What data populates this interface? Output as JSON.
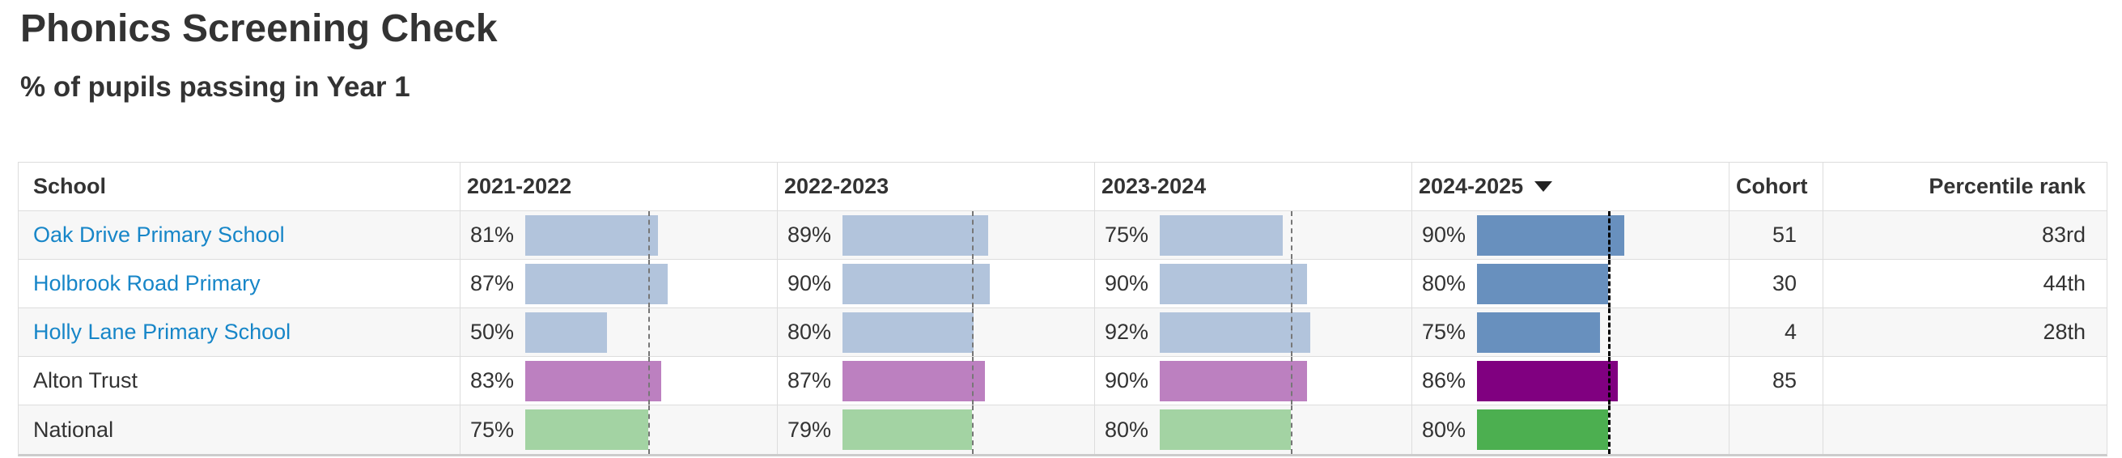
{
  "page": {
    "title": "Phonics Screening Check",
    "subtitle": "% of pupils passing in Year 1"
  },
  "colors": {
    "link": "#1786c8",
    "school_bar": "#b2c4dc",
    "school_bar_current": "#6890be",
    "trust_bar": "#bc80c0",
    "trust_bar_current": "#800080",
    "national_bar": "#a3d3a3",
    "national_bar_current": "#4caf50",
    "benchmark_line": "#777777",
    "benchmark_line_current": "#000000"
  },
  "table": {
    "headers": [
      {
        "label": "School"
      },
      {
        "label": "2021-2022"
      },
      {
        "label": "2022-2023"
      },
      {
        "label": "2023-2024"
      },
      {
        "label": "2024-2025",
        "sorted": true,
        "sort_icon": "descending-triangle"
      },
      {
        "label": "Cohort"
      },
      {
        "label": "Percentile rank"
      }
    ],
    "benchmarks": [
      75,
      79,
      80,
      80
    ],
    "rows": [
      {
        "school": "Oak Drive Primary School",
        "link": true,
        "group": "school",
        "values": [
          81,
          89,
          75,
          90
        ],
        "cohort": "51",
        "percentile": "83rd"
      },
      {
        "school": "Holbrook Road Primary",
        "link": true,
        "group": "school",
        "values": [
          87,
          90,
          90,
          80
        ],
        "cohort": "30",
        "percentile": "44th"
      },
      {
        "school": "Holly Lane Primary School",
        "link": true,
        "group": "school",
        "values": [
          50,
          80,
          92,
          75
        ],
        "cohort": "4",
        "percentile": "28th"
      },
      {
        "school": "Alton Trust",
        "link": false,
        "group": "trust",
        "values": [
          83,
          87,
          90,
          86
        ],
        "cohort": "85",
        "percentile": ""
      },
      {
        "school": "National",
        "link": false,
        "group": "national",
        "values": [
          75,
          79,
          80,
          80
        ],
        "cohort": "",
        "percentile": ""
      }
    ]
  },
  "chart_data": {
    "type": "table",
    "title": "Phonics Screening Check",
    "subtitle": "% of pupils passing in Year 1",
    "columns": [
      "School",
      "2021-2022",
      "2022-2023",
      "2023-2024",
      "2024-2025",
      "Cohort",
      "Percentile rank"
    ],
    "categories": [
      "2021-2022",
      "2022-2023",
      "2023-2024",
      "2024-2025"
    ],
    "unit": "%",
    "value_range": [
      0,
      100
    ],
    "sorted_by": "2024-2025",
    "sort_direction": "descending",
    "benchmark_series": "National",
    "benchmark_values": [
      75,
      79,
      80,
      80
    ],
    "series": [
      {
        "name": "Oak Drive Primary School",
        "values": [
          81,
          89,
          75,
          90
        ],
        "cohort": 51,
        "percentile_rank": "83rd"
      },
      {
        "name": "Holbrook Road Primary",
        "values": [
          87,
          90,
          90,
          80
        ],
        "cohort": 30,
        "percentile_rank": "44th"
      },
      {
        "name": "Holly Lane Primary School",
        "values": [
          50,
          80,
          92,
          75
        ],
        "cohort": 4,
        "percentile_rank": "28th"
      },
      {
        "name": "Alton Trust",
        "values": [
          83,
          87,
          90,
          86
        ],
        "cohort": 85,
        "percentile_rank": null
      },
      {
        "name": "National",
        "values": [
          75,
          79,
          80,
          80
        ],
        "cohort": null,
        "percentile_rank": null
      }
    ]
  }
}
